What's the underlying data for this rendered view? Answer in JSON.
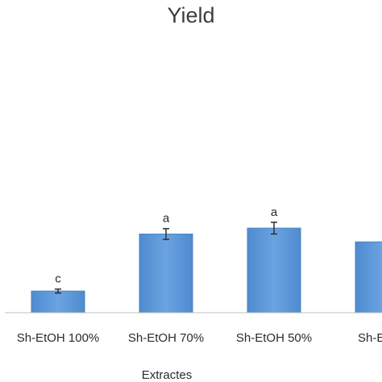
{
  "chart_data": {
    "type": "bar",
    "title": "Yield",
    "xlabel": "Extractes",
    "ylabel": "",
    "categories": [
      "Sh-EtOH 100%",
      "Sh-EtOH 70%",
      "Sh-EtOH 50%",
      "Sh-EtOH"
    ],
    "values": [
      2.2,
      8.0,
      8.6,
      7.2
    ],
    "errors": [
      0.2,
      0.55,
      0.6,
      null
    ],
    "significance": [
      "c",
      "a",
      "a",
      ""
    ],
    "ylim": [
      0,
      10
    ],
    "grid": false,
    "colors": {
      "bar": "#5b96d6",
      "bar_border": "#4a84c4",
      "error_bar": "#2f2f2f",
      "axis": "#bfbfbf"
    }
  }
}
